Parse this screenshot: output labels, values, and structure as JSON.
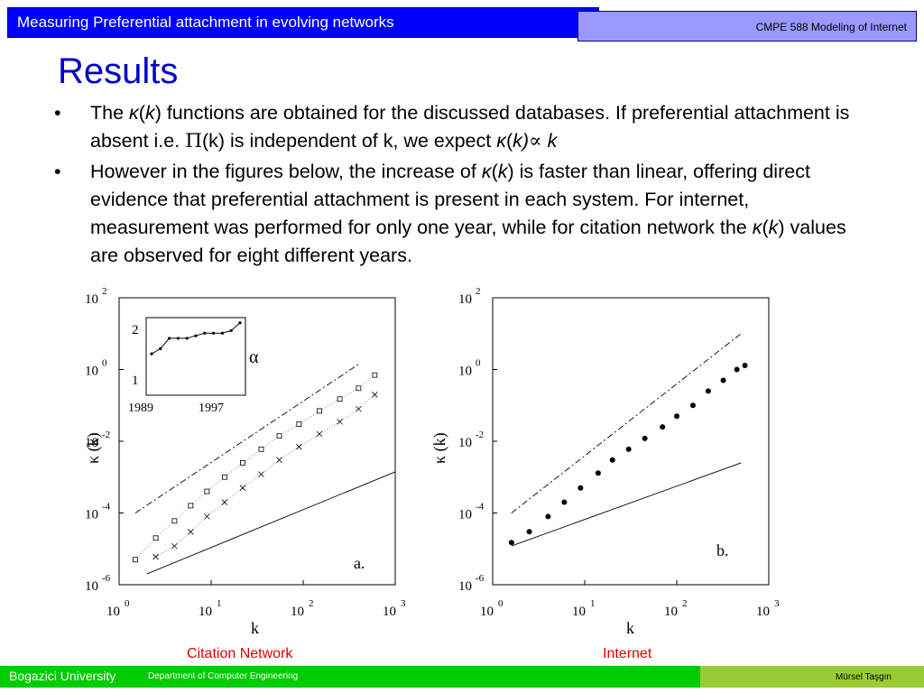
{
  "header": {
    "title": "Measuring Preferential attachment in evolving networks",
    "course": "CMPE 588 Modeling of Internet"
  },
  "slide": {
    "heading": "Results",
    "bullet_symbol": "•",
    "bullet1": {
      "a": "The ",
      "b": "κ",
      "c": "(",
      "d": "k",
      "e": ") functions are obtained for the discussed databases. If preferential attachment is absent i.e. ",
      "f": "Π",
      "g": "(k)  is independent of k, we expect ",
      "h": "κ",
      "i": "(",
      "j": "k",
      "k": ")",
      "l": "∝",
      "m": " k"
    },
    "bullet2": {
      "a": "However in the figures below, the increase of ",
      "b": "κ",
      "c": "(",
      "d": "k",
      "e": ") is faster than linear, offering direct evidence that preferential attachment is present in each system. For internet, measurement was performed for only one year, while for citation network the ",
      "f": "κ",
      "g": "(",
      "h": "k",
      "i": ") values are observed for eight different years."
    }
  },
  "figures": {
    "ylabel": "κ  (k)",
    "xlabel": "k",
    "ytick_base": "10",
    "yticks_exp": [
      "2",
      "0",
      "-2",
      "-4",
      "-6"
    ],
    "xticks_exp": [
      "0",
      "1",
      "2",
      "3"
    ],
    "panel_a_label": "a.",
    "panel_b_label": "b.",
    "inset_alpha": "α",
    "inset_yticks": [
      "2",
      "1"
    ],
    "inset_xticks": [
      "1989",
      "1997"
    ]
  },
  "captions": {
    "a": "Citation Network",
    "b": "Internet"
  },
  "footer": {
    "university": "Bogazici University",
    "department": "Department of Computer Engineering",
    "author": "Mürsel Taşgın"
  },
  "colors": {
    "title_bar": "#0000ff",
    "course_box": "#9999ff",
    "heading": "#0000cc",
    "caption": "#e00000",
    "footer_left": "#00cc00",
    "footer_right": "#99cc33"
  },
  "chart_data": [
    {
      "type": "scatter",
      "title": "Citation Network",
      "xlabel": "k",
      "ylabel": "κ  (k)",
      "xscale": "log",
      "yscale": "log",
      "xlim": [
        1,
        1000
      ],
      "ylim": [
        1e-06,
        100
      ],
      "series": [
        {
          "marker": "square",
          "x": [
            1.5,
            2.5,
            4,
            6,
            9,
            14,
            22,
            35,
            55,
            90,
            150,
            250,
            400,
            600
          ],
          "values": [
            5e-06,
            2e-05,
            6e-05,
            0.00016,
            0.0004,
            0.001,
            0.0025,
            0.006,
            0.014,
            0.03,
            0.07,
            0.15,
            0.3,
            0.7
          ]
        },
        {
          "marker": "cross",
          "x": [
            2.5,
            4,
            6,
            9,
            14,
            22,
            35,
            55,
            90,
            150,
            250,
            400,
            600
          ],
          "values": [
            6e-06,
            1.2e-05,
            3e-05,
            8e-05,
            0.0002,
            0.0005,
            0.0012,
            0.003,
            0.007,
            0.016,
            0.035,
            0.08,
            0.2
          ]
        },
        {
          "style": "dash-dot",
          "x": [
            1.5,
            400
          ],
          "values": [
            0.0001,
            1.4
          ]
        },
        {
          "style": "solid",
          "x": [
            2,
            1000
          ],
          "values": [
            2e-06,
            0.0014
          ]
        }
      ]
    },
    {
      "type": "line",
      "title": "inset",
      "x": [
        1989,
        1990,
        1991,
        1992,
        1993,
        1994,
        1995,
        1996,
        1997,
        1998,
        1999
      ],
      "values": [
        1.6,
        1.7,
        1.9,
        1.9,
        1.9,
        1.95,
        2.0,
        2.0,
        2.0,
        2.05,
        2.2
      ],
      "ylim": [
        0.8,
        2.3
      ],
      "xticks": [
        "1989",
        "1997"
      ],
      "yticks": [
        "1",
        "2"
      ]
    },
    {
      "type": "scatter",
      "title": "Internet",
      "xlabel": "k",
      "ylabel": "κ  (k)",
      "xscale": "log",
      "yscale": "log",
      "xlim": [
        1,
        1000
      ],
      "ylim": [
        1e-06,
        100
      ],
      "series": [
        {
          "marker": "dot",
          "x": [
            1.6,
            2.5,
            4,
            6,
            9,
            14,
            20,
            30,
            45,
            70,
            100,
            150,
            220,
            320,
            450,
            550
          ],
          "values": [
            1.5e-05,
            3e-05,
            8e-05,
            0.0002,
            0.0005,
            0.0013,
            0.003,
            0.006,
            0.012,
            0.025,
            0.05,
            0.1,
            0.25,
            0.5,
            1.0,
            1.3
          ]
        },
        {
          "style": "dash-dot",
          "x": [
            1.6,
            500
          ],
          "values": [
            0.0001,
            10
          ]
        },
        {
          "style": "solid",
          "x": [
            1.6,
            500
          ],
          "values": [
            1.2e-05,
            0.0025
          ]
        }
      ]
    }
  ]
}
